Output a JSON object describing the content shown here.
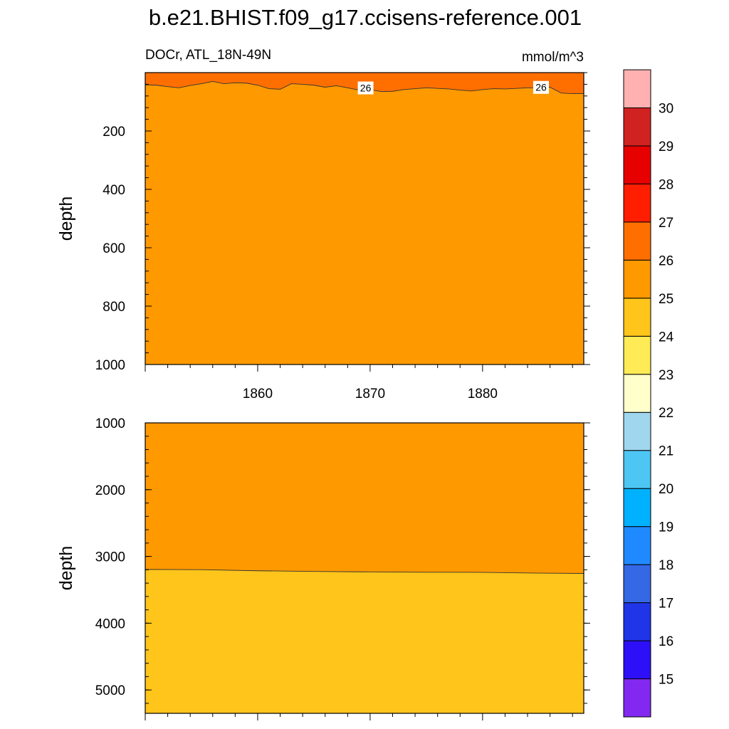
{
  "title": "b.e21.BHIST.f09_g17.ccisens-reference.001",
  "left_subtitle": "DOCr, ATL_18N-49N",
  "right_subtitle": "mmol/m^3",
  "chart_data": [
    {
      "type": "contour",
      "panel": "upper",
      "ylabel": "depth",
      "ylim": [
        0,
        1000
      ],
      "y_reversed": true,
      "yticks": [
        "200",
        "400",
        "600",
        "800",
        "1000"
      ],
      "xlim": [
        1850,
        1889
      ],
      "xticks": [
        "1860",
        "1870",
        "1880"
      ],
      "contour_26_depth": {
        "x": [
          1850,
          1851,
          1852,
          1853,
          1854,
          1855,
          1856,
          1857,
          1858,
          1859,
          1860,
          1861,
          1862,
          1863,
          1864,
          1865,
          1866,
          1867,
          1868,
          1869,
          1870,
          1871,
          1872,
          1873,
          1874,
          1875,
          1876,
          1877,
          1878,
          1879,
          1880,
          1881,
          1882,
          1883,
          1884,
          1885,
          1886,
          1887,
          1888,
          1889
        ],
        "y": [
          42,
          43,
          48,
          52,
          44,
          38,
          30,
          38,
          35,
          36,
          43,
          55,
          57,
          38,
          40,
          43,
          50,
          45,
          52,
          60,
          58,
          65,
          64,
          58,
          55,
          52,
          54,
          56,
          60,
          63,
          58,
          55,
          56,
          54,
          52,
          52,
          50,
          70,
          72,
          72
        ]
      },
      "contour_labels": [
        {
          "text": "26",
          "x": 1869.6,
          "y": 55
        },
        {
          "text": "26",
          "x": 1885.2,
          "y": 53
        }
      ],
      "regions": [
        {
          "range": "26-27",
          "color": "#FF6F00"
        },
        {
          "range": "25-26",
          "color": "#FF9900"
        }
      ]
    },
    {
      "type": "contour",
      "panel": "lower",
      "ylabel": "depth",
      "ylim": [
        1000,
        5350
      ],
      "y_reversed": true,
      "yticks": [
        "1000",
        "2000",
        "3000",
        "4000",
        "5000"
      ],
      "xlim": [
        1850,
        1889
      ],
      "contour_25_depth": {
        "x": [
          1850,
          1855,
          1860,
          1865,
          1870,
          1875,
          1880,
          1885,
          1889
        ],
        "y": [
          3195,
          3198,
          3215,
          3225,
          3232,
          3237,
          3238,
          3250,
          3255
        ]
      },
      "regions": [
        {
          "range": "25-26",
          "color": "#FF9900"
        },
        {
          "range": "24-25",
          "color": "#FFC51A"
        }
      ]
    }
  ],
  "colorbar": {
    "colors": [
      "#8228F0",
      "#2D0FF8",
      "#2035E8",
      "#3468E5",
      "#1F8AFF",
      "#00B1FF",
      "#4EC6F4",
      "#A0D7EE",
      "#FFFFCB",
      "#FFEB55",
      "#FFC51A",
      "#FF9900",
      "#FF6F00",
      "#FF1E00",
      "#E60000",
      "#D12222",
      "#FFB1B1"
    ],
    "labels": [
      "15",
      "16",
      "17",
      "18",
      "19",
      "20",
      "21",
      "22",
      "23",
      "24",
      "25",
      "26",
      "27",
      "28",
      "29",
      "30"
    ]
  }
}
